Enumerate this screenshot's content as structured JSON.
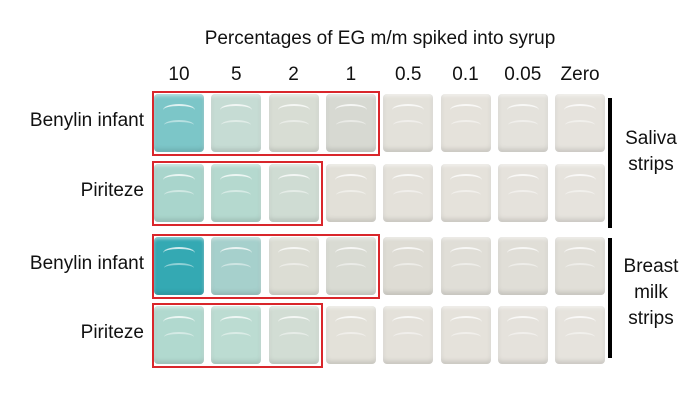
{
  "title": "Percentages of EG m/m spiked into syrup",
  "columns": [
    "10",
    "5",
    "2",
    "1",
    "0.5",
    "0.1",
    "0.05",
    "Zero"
  ],
  "rows": [
    {
      "label": "Benylin infant",
      "highlighted_count": 4,
      "tile_colors": [
        "#7cc6c8",
        "#c6dcd4",
        "#d8ddd4",
        "#d7d9d2",
        "#e3e1da",
        "#e5e2db",
        "#e4e2dc",
        "#e6e3dd"
      ]
    },
    {
      "label": "Piriteze",
      "highlighted_count": 3,
      "tile_colors": [
        "#a9d5cc",
        "#b5d9cf",
        "#cfdcd3",
        "#e2e0d8",
        "#e4e1da",
        "#e5e2db",
        "#e5e2dc",
        "#e6e3dd"
      ]
    },
    {
      "label": "Benylin infant",
      "highlighted_count": 4,
      "tile_colors": [
        "#34a9b3",
        "#a6d0cc",
        "#dcddd4",
        "#d9dbd3",
        "#dedcd4",
        "#e0ded7",
        "#e0ded7",
        "#e1dfd8"
      ]
    },
    {
      "label": "Piriteze",
      "highlighted_count": 3,
      "tile_colors": [
        "#b1d9cf",
        "#bcdcd2",
        "#d2ddd4",
        "#e3e1d9",
        "#e4e1da",
        "#e5e2db",
        "#e5e2dc",
        "#e6e3dd"
      ]
    }
  ],
  "groups": [
    {
      "label_lines": [
        "Saliva",
        "strips"
      ]
    },
    {
      "label_lines": [
        "Breast",
        "milk",
        "strips"
      ]
    }
  ],
  "highlight_color": "#d9262b"
}
